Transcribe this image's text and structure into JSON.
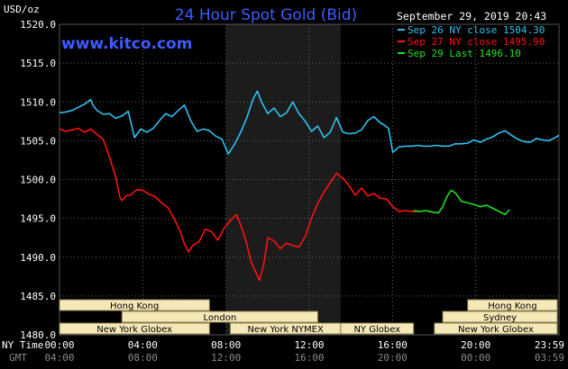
{
  "title": "24 Hour Spot Gold (Bid)",
  "website": "www.kitco.com",
  "timestamp": "September 29, 2019 20:43",
  "ylabel": "USD/oz",
  "time_row_labels": {
    "ny": "NY Time",
    "gmt": "GMT"
  },
  "colors": {
    "title": "#3e5cff",
    "blue": "#2fc0f0",
    "red": "#ff1010",
    "green": "#22e022",
    "grid": "#666666",
    "shade": "#1c1c1c",
    "market_box": "#f5e9b8"
  },
  "markets": [
    {
      "name": "Hong Kong",
      "start": -0.1,
      "end": 7.2,
      "row": 0
    },
    {
      "name": "Hong Kong",
      "start": 19.6,
      "end": 23.9,
      "row": 0
    },
    {
      "name": "London",
      "start": 3.0,
      "end": 12.4,
      "row": 1
    },
    {
      "name": "Sydney",
      "start": 18.4,
      "end": 23.9,
      "row": 1
    },
    {
      "name": "New York Globex",
      "start": -0.1,
      "end": 7.2,
      "row": 2
    },
    {
      "name": "New York NYMEX",
      "start": 8.2,
      "end": 13.5,
      "row": 2
    },
    {
      "name": "NY Globex",
      "start": 13.5,
      "end": 17.0,
      "row": 2
    },
    {
      "name": "New York Globex",
      "start": 18.0,
      "end": 23.9,
      "row": 2
    }
  ],
  "chart_data": {
    "type": "line",
    "title": "24 Hour Spot Gold (Bid)",
    "xlabel": "",
    "ylabel": "USD/oz",
    "ylim": [
      1480,
      1520
    ],
    "yticks": [
      "1520.0",
      "1515.0",
      "1510.0",
      "1505.0",
      "1500.0",
      "1495.0",
      "1490.0",
      "1485.0",
      "1480.0"
    ],
    "xlim": [
      0,
      23.983
    ],
    "ny_ticks": [
      "00:00",
      "04:00",
      "08:00",
      "12:00",
      "16:00",
      "20:00",
      "23:59"
    ],
    "gmt_ticks": [
      "04:00",
      "08:00",
      "12:00",
      "16:00",
      "20:00",
      "00:00",
      "03:59"
    ],
    "grid": true,
    "legend_position": "top-right",
    "shaded_range": [
      8.0,
      13.5
    ],
    "series": [
      {
        "name": "Sep 26 NY close 1504.30",
        "color": "#2fc0f0",
        "x": [
          0,
          0.3,
          0.6,
          0.9,
          1.2,
          1.5,
          1.6,
          1.8,
          2.1,
          2.4,
          2.7,
          3.0,
          3.3,
          3.6,
          3.9,
          4.2,
          4.5,
          4.8,
          5.1,
          5.4,
          5.7,
          6.0,
          6.3,
          6.6,
          6.9,
          7.2,
          7.5,
          7.8,
          8.1,
          8.4,
          8.7,
          9.0,
          9.3,
          9.5,
          9.7,
          10.0,
          10.3,
          10.6,
          10.9,
          11.2,
          11.5,
          11.8,
          12.1,
          12.4,
          12.7,
          13.0,
          13.3,
          13.6,
          13.9,
          14.2,
          14.5,
          14.8,
          15.1,
          15.4,
          15.6,
          15.8,
          16.0,
          16.3,
          16.6,
          16.9,
          17.2,
          17.5,
          17.8,
          18.1,
          18.4,
          18.7,
          19.0,
          19.3,
          19.6,
          19.9,
          20.2,
          20.5,
          20.8,
          21.1,
          21.4,
          21.7,
          22.0,
          22.3,
          22.6,
          22.9,
          23.2,
          23.5,
          23.8,
          23.98
        ],
        "values": [
          1508.6,
          1508.7,
          1508.9,
          1509.3,
          1509.7,
          1510.3,
          1509.6,
          1508.9,
          1508.4,
          1508.5,
          1507.9,
          1508.2,
          1508.8,
          1505.4,
          1506.5,
          1506.1,
          1506.6,
          1507.6,
          1508.5,
          1508.1,
          1508.9,
          1509.6,
          1507.6,
          1506.2,
          1506.5,
          1506.3,
          1505.6,
          1505.2,
          1503.3,
          1504.5,
          1506.1,
          1508.0,
          1510.4,
          1511.4,
          1510.0,
          1508.5,
          1509.2,
          1508.1,
          1508.6,
          1510.0,
          1508.5,
          1507.5,
          1506.2,
          1506.9,
          1505.4,
          1506.1,
          1508.0,
          1506.1,
          1505.9,
          1506.0,
          1506.4,
          1507.6,
          1508.1,
          1507.3,
          1507.0,
          1506.6,
          1503.5,
          1504.2,
          1504.3,
          1504.3,
          1504.4,
          1504.3,
          1504.3,
          1504.4,
          1504.3,
          1504.3,
          1504.6,
          1504.6,
          1504.7,
          1505.1,
          1504.8,
          1505.2,
          1505.5,
          1506.0,
          1506.3,
          1505.7,
          1505.2,
          1504.9,
          1504.8,
          1505.3,
          1505.1,
          1505.0,
          1505.4,
          1505.7
        ]
      },
      {
        "name": "Sep 27 NY close 1495.90",
        "color": "#ff1010",
        "x": [
          0,
          0.3,
          0.6,
          0.9,
          1.2,
          1.5,
          1.8,
          2.1,
          2.4,
          2.7,
          2.9,
          3.0,
          3.2,
          3.4,
          3.7,
          4.0,
          4.3,
          4.6,
          4.9,
          5.2,
          5.5,
          5.8,
          6.0,
          6.2,
          6.4,
          6.7,
          7.0,
          7.3,
          7.6,
          7.9,
          8.2,
          8.5,
          8.8,
          9.0,
          9.2,
          9.4,
          9.6,
          9.8,
          10.0,
          10.3,
          10.6,
          10.9,
          11.2,
          11.5,
          11.8,
          12.1,
          12.4,
          12.7,
          13.0,
          13.3,
          13.6,
          13.9,
          14.2,
          14.5,
          14.8,
          15.1,
          15.4,
          15.7,
          16.0,
          16.3,
          16.6,
          16.9,
          17.2
        ],
        "values": [
          1506.5,
          1506.2,
          1506.4,
          1506.6,
          1506.1,
          1506.5,
          1505.8,
          1505.2,
          1502.9,
          1500.3,
          1497.7,
          1497.3,
          1497.9,
          1498.0,
          1498.7,
          1498.6,
          1498.1,
          1497.8,
          1497.0,
          1496.4,
          1495.0,
          1493.3,
          1491.7,
          1490.7,
          1491.5,
          1492.0,
          1493.6,
          1493.3,
          1492.2,
          1493.7,
          1494.7,
          1495.5,
          1493.4,
          1491.6,
          1489.4,
          1488.2,
          1487.0,
          1489.0,
          1492.5,
          1492.1,
          1491.1,
          1491.8,
          1491.5,
          1491.3,
          1492.7,
          1495.0,
          1496.9,
          1498.4,
          1499.6,
          1500.8,
          1500.2,
          1499.2,
          1498.0,
          1498.9,
          1497.9,
          1498.2,
          1497.6,
          1497.5,
          1496.5,
          1495.9,
          1496.0,
          1495.9,
          1495.9
        ]
      },
      {
        "name": "Sep 29 Last 1496.10",
        "color": "#22e022",
        "x": [
          17.0,
          17.3,
          17.6,
          17.9,
          18.2,
          18.4,
          18.6,
          18.8,
          19.0,
          19.3,
          19.6,
          19.9,
          20.2,
          20.5,
          20.8,
          21.1,
          21.4,
          21.6
        ],
        "values": [
          1496.0,
          1495.9,
          1496.0,
          1495.8,
          1495.7,
          1496.5,
          1497.8,
          1498.6,
          1498.3,
          1497.2,
          1497.0,
          1496.8,
          1496.5,
          1496.7,
          1496.3,
          1495.9,
          1495.5,
          1496.1
        ]
      }
    ]
  }
}
